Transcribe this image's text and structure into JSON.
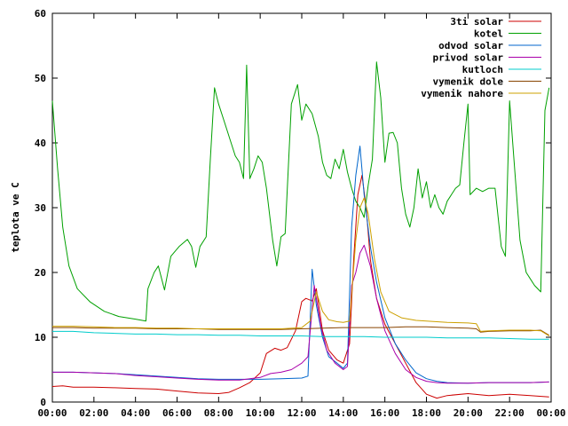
{
  "chart_data": {
    "type": "line",
    "title": "",
    "xlabel": "",
    "ylabel": "teplota ve C",
    "xlim": [
      "00:00",
      "24:00"
    ],
    "ylim": [
      0,
      60
    ],
    "x_ticks": [
      "00:00",
      "02:00",
      "04:00",
      "06:00",
      "08:00",
      "10:00",
      "12:00",
      "14:00",
      "16:00",
      "18:00",
      "20:00",
      "22:00",
      "00:00"
    ],
    "y_ticks": [
      "0",
      "10",
      "20",
      "30",
      "40",
      "50",
      "60"
    ],
    "grid": false,
    "legend_position": "top-right",
    "series": [
      {
        "name": "3ti solar",
        "color": "#cc0000",
        "points": [
          [
            0,
            2.4
          ],
          [
            0.5,
            2.5
          ],
          [
            1,
            2.3
          ],
          [
            2,
            2.3
          ],
          [
            3,
            2.2
          ],
          [
            4,
            2.1
          ],
          [
            5,
            2
          ],
          [
            6,
            1.7
          ],
          [
            7,
            1.4
          ],
          [
            8,
            1.3
          ],
          [
            8.5,
            1.5
          ],
          [
            9,
            2.2
          ],
          [
            9.5,
            3
          ],
          [
            10,
            4.5
          ],
          [
            10.3,
            7.5
          ],
          [
            10.7,
            8.3
          ],
          [
            11,
            8
          ],
          [
            11.3,
            8.4
          ],
          [
            11.7,
            11
          ],
          [
            12,
            15.5
          ],
          [
            12.2,
            16
          ],
          [
            12.5,
            15.6
          ],
          [
            12.7,
            17.5
          ],
          [
            13,
            11
          ],
          [
            13.3,
            8
          ],
          [
            13.7,
            6.5
          ],
          [
            14,
            6
          ],
          [
            14.3,
            9
          ],
          [
            14.5,
            22
          ],
          [
            14.7,
            32
          ],
          [
            14.9,
            35
          ],
          [
            15.1,
            30
          ],
          [
            15.3,
            22
          ],
          [
            15.6,
            16
          ],
          [
            16,
            12
          ],
          [
            16.5,
            9
          ],
          [
            17,
            6
          ],
          [
            17.5,
            3
          ],
          [
            18,
            1.2
          ],
          [
            18.5,
            0.6
          ],
          [
            19,
            1
          ],
          [
            20,
            1.3
          ],
          [
            21,
            1
          ],
          [
            22,
            1.2
          ],
          [
            23,
            1
          ],
          [
            23.9,
            0.8
          ]
        ]
      },
      {
        "name": "kotel",
        "color": "#00a000",
        "points": [
          [
            0,
            46.5
          ],
          [
            0.25,
            36
          ],
          [
            0.5,
            27
          ],
          [
            0.8,
            21
          ],
          [
            1.2,
            17.5
          ],
          [
            1.8,
            15.5
          ],
          [
            2.5,
            14
          ],
          [
            3.2,
            13.2
          ],
          [
            4,
            12.8
          ],
          [
            4.5,
            12.5
          ],
          [
            4.6,
            17.5
          ],
          [
            4.9,
            20
          ],
          [
            5.1,
            21
          ],
          [
            5.4,
            17.3
          ],
          [
            5.7,
            22.5
          ],
          [
            6.1,
            24
          ],
          [
            6.5,
            25.1
          ],
          [
            6.7,
            24
          ],
          [
            6.9,
            20.8
          ],
          [
            7.1,
            24
          ],
          [
            7.4,
            25.5
          ],
          [
            7.6,
            37.5
          ],
          [
            7.8,
            48.5
          ],
          [
            8,
            46
          ],
          [
            8.3,
            43
          ],
          [
            8.6,
            40
          ],
          [
            8.8,
            38
          ],
          [
            9,
            37
          ],
          [
            9.2,
            34.5
          ],
          [
            9.35,
            52
          ],
          [
            9.5,
            34.5
          ],
          [
            9.7,
            36
          ],
          [
            9.9,
            38
          ],
          [
            10.1,
            37
          ],
          [
            10.3,
            33
          ],
          [
            10.6,
            25
          ],
          [
            10.8,
            21
          ],
          [
            11,
            25.5
          ],
          [
            11.2,
            26
          ],
          [
            11.5,
            46
          ],
          [
            11.8,
            49
          ],
          [
            12,
            43.5
          ],
          [
            12.2,
            46
          ],
          [
            12.5,
            44.5
          ],
          [
            12.8,
            41
          ],
          [
            13,
            37
          ],
          [
            13.2,
            35
          ],
          [
            13.4,
            34.5
          ],
          [
            13.6,
            37.5
          ],
          [
            13.8,
            36
          ],
          [
            14,
            39
          ],
          [
            14.2,
            35.5
          ],
          [
            14.4,
            33
          ],
          [
            14.6,
            31
          ],
          [
            14.8,
            30
          ],
          [
            15,
            28.5
          ],
          [
            15.2,
            33.5
          ],
          [
            15.4,
            37.5
          ],
          [
            15.6,
            52.5
          ],
          [
            15.8,
            47
          ],
          [
            16,
            37
          ],
          [
            16.2,
            41.5
          ],
          [
            16.4,
            41.6
          ],
          [
            16.6,
            40
          ],
          [
            16.8,
            33
          ],
          [
            17,
            29
          ],
          [
            17.2,
            27
          ],
          [
            17.4,
            30
          ],
          [
            17.6,
            36
          ],
          [
            17.8,
            31.5
          ],
          [
            18,
            34
          ],
          [
            18.2,
            30
          ],
          [
            18.4,
            32
          ],
          [
            18.6,
            30
          ],
          [
            18.8,
            29
          ],
          [
            19,
            31
          ],
          [
            19.2,
            32
          ],
          [
            19.4,
            33
          ],
          [
            19.6,
            33.5
          ],
          [
            19.8,
            40
          ],
          [
            20,
            46
          ],
          [
            20.1,
            32
          ],
          [
            20.4,
            33
          ],
          [
            20.7,
            32.5
          ],
          [
            21,
            33
          ],
          [
            21.3,
            33
          ],
          [
            21.6,
            24
          ],
          [
            21.8,
            22.5
          ],
          [
            22,
            46.5
          ],
          [
            22.2,
            38
          ],
          [
            22.5,
            25
          ],
          [
            22.8,
            20
          ],
          [
            23,
            19
          ],
          [
            23.2,
            18
          ],
          [
            23.5,
            17
          ],
          [
            23.7,
            45
          ],
          [
            23.9,
            48.5
          ]
        ]
      },
      {
        "name": "odvod solar",
        "color": "#0066cc",
        "points": [
          [
            0,
            4.6
          ],
          [
            1,
            4.6
          ],
          [
            2,
            4.5
          ],
          [
            3,
            4.4
          ],
          [
            4,
            4.2
          ],
          [
            5,
            4
          ],
          [
            6,
            3.8
          ],
          [
            7,
            3.6
          ],
          [
            8,
            3.5
          ],
          [
            9,
            3.5
          ],
          [
            10,
            3.5
          ],
          [
            11,
            3.6
          ],
          [
            12,
            3.7
          ],
          [
            12.3,
            4
          ],
          [
            12.5,
            20.5
          ],
          [
            12.7,
            15
          ],
          [
            13,
            10
          ],
          [
            13.3,
            7
          ],
          [
            13.7,
            6
          ],
          [
            14,
            5.2
          ],
          [
            14.2,
            6
          ],
          [
            14.4,
            27
          ],
          [
            14.6,
            35
          ],
          [
            14.8,
            39.5
          ],
          [
            15,
            32
          ],
          [
            15.3,
            24
          ],
          [
            15.6,
            18.5
          ],
          [
            16,
            13
          ],
          [
            16.5,
            9
          ],
          [
            17,
            6.5
          ],
          [
            17.5,
            4.5
          ],
          [
            18,
            3.6
          ],
          [
            18.5,
            3.2
          ],
          [
            19,
            3
          ],
          [
            20,
            2.9
          ],
          [
            21,
            3
          ],
          [
            22,
            3
          ],
          [
            23,
            3
          ],
          [
            23.9,
            3.1
          ]
        ]
      },
      {
        "name": "privod solar",
        "color": "#aa00aa",
        "points": [
          [
            0,
            4.6
          ],
          [
            1,
            4.6
          ],
          [
            2,
            4.5
          ],
          [
            3,
            4.4
          ],
          [
            4,
            4.1
          ],
          [
            5,
            3.9
          ],
          [
            6,
            3.7
          ],
          [
            7,
            3.5
          ],
          [
            8,
            3.4
          ],
          [
            9,
            3.4
          ],
          [
            10,
            3.8
          ],
          [
            10.5,
            4.4
          ],
          [
            11,
            4.6
          ],
          [
            11.5,
            5
          ],
          [
            12,
            6
          ],
          [
            12.3,
            7
          ],
          [
            12.6,
            18
          ],
          [
            12.9,
            12
          ],
          [
            13.2,
            8
          ],
          [
            13.6,
            6
          ],
          [
            14,
            5
          ],
          [
            14.2,
            5.5
          ],
          [
            14.4,
            18
          ],
          [
            14.6,
            20
          ],
          [
            14.8,
            23
          ],
          [
            15,
            24.2
          ],
          [
            15.3,
            21
          ],
          [
            15.6,
            16
          ],
          [
            16,
            11
          ],
          [
            16.5,
            7.5
          ],
          [
            17,
            5
          ],
          [
            17.5,
            3.8
          ],
          [
            18,
            3.2
          ],
          [
            18.5,
            3
          ],
          [
            19,
            2.9
          ],
          [
            20,
            2.9
          ],
          [
            21,
            3
          ],
          [
            22,
            3
          ],
          [
            23,
            3
          ],
          [
            23.9,
            3.1
          ]
        ]
      },
      {
        "name": "kutloch",
        "color": "#00cccc",
        "points": [
          [
            0,
            10.9
          ],
          [
            1,
            10.9
          ],
          [
            2,
            10.7
          ],
          [
            3,
            10.6
          ],
          [
            4,
            10.5
          ],
          [
            5,
            10.5
          ],
          [
            6,
            10.4
          ],
          [
            7,
            10.4
          ],
          [
            8,
            10.3
          ],
          [
            9,
            10.3
          ],
          [
            10,
            10.2
          ],
          [
            11,
            10.2
          ],
          [
            12,
            10.2
          ],
          [
            13,
            10.1
          ],
          [
            14,
            10.1
          ],
          [
            15,
            10.1
          ],
          [
            16,
            10
          ],
          [
            17,
            10
          ],
          [
            18,
            10
          ],
          [
            19,
            9.9
          ],
          [
            20,
            9.9
          ],
          [
            21,
            9.9
          ],
          [
            22,
            9.8
          ],
          [
            23,
            9.7
          ],
          [
            23.9,
            9.7
          ]
        ]
      },
      {
        "name": "vymenik dole",
        "color": "#884400",
        "points": [
          [
            0,
            11.5
          ],
          [
            1,
            11.5
          ],
          [
            2,
            11.4
          ],
          [
            3,
            11.4
          ],
          [
            4,
            11.4
          ],
          [
            5,
            11.3
          ],
          [
            6,
            11.3
          ],
          [
            7,
            11.3
          ],
          [
            8,
            11.2
          ],
          [
            9,
            11.2
          ],
          [
            10,
            11.2
          ],
          [
            11,
            11.2
          ],
          [
            12,
            11.3
          ],
          [
            13,
            11.4
          ],
          [
            14,
            11.5
          ],
          [
            15,
            11.5
          ],
          [
            16,
            11.5
          ],
          [
            17,
            11.6
          ],
          [
            18,
            11.6
          ],
          [
            19,
            11.5
          ],
          [
            20,
            11.4
          ],
          [
            20.4,
            11.3
          ],
          [
            20.6,
            10.8
          ],
          [
            21,
            10.9
          ],
          [
            22,
            11
          ],
          [
            23,
            11
          ],
          [
            23.5,
            11.1
          ],
          [
            23.9,
            10.3
          ]
        ]
      },
      {
        "name": "vymenik nahore",
        "color": "#cca000",
        "points": [
          [
            0,
            11.7
          ],
          [
            1,
            11.7
          ],
          [
            2,
            11.6
          ],
          [
            3,
            11.5
          ],
          [
            4,
            11.5
          ],
          [
            5,
            11.4
          ],
          [
            6,
            11.4
          ],
          [
            7,
            11.3
          ],
          [
            8,
            11.3
          ],
          [
            9,
            11.3
          ],
          [
            10,
            11.3
          ],
          [
            11,
            11.3
          ],
          [
            12,
            11.5
          ],
          [
            12.4,
            12.5
          ],
          [
            12.7,
            17
          ],
          [
            13,
            14
          ],
          [
            13.3,
            12.7
          ],
          [
            13.7,
            12.4
          ],
          [
            14,
            12.3
          ],
          [
            14.3,
            12.5
          ],
          [
            14.6,
            25
          ],
          [
            14.8,
            30
          ],
          [
            15,
            31.5
          ],
          [
            15.2,
            29
          ],
          [
            15.5,
            22
          ],
          [
            15.8,
            17
          ],
          [
            16.2,
            14
          ],
          [
            16.8,
            13
          ],
          [
            17.5,
            12.6
          ],
          [
            18,
            12.5
          ],
          [
            19,
            12.3
          ],
          [
            20,
            12.2
          ],
          [
            20.4,
            12.1
          ],
          [
            20.6,
            10.9
          ],
          [
            21,
            11
          ],
          [
            22,
            11.1
          ],
          [
            23,
            11.1
          ],
          [
            23.5,
            11
          ],
          [
            23.9,
            10.2
          ]
        ]
      }
    ]
  }
}
